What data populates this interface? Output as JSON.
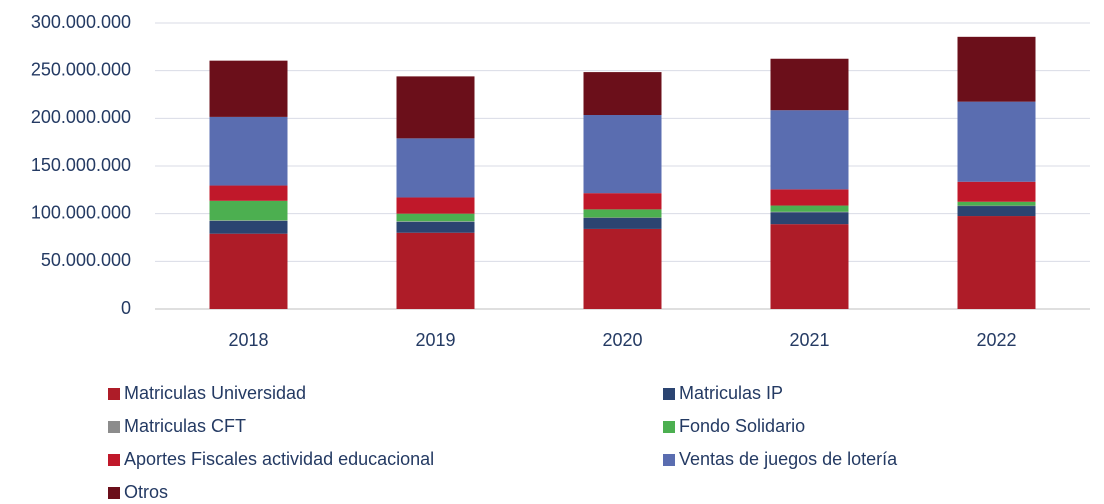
{
  "chart_data": {
    "type": "stacked_bar",
    "categories": [
      "2018",
      "2019",
      "2020",
      "2021",
      "2022"
    ],
    "series": [
      {
        "name": "Matriculas Universidad",
        "color": "#ae1c28",
        "values": [
          79000000,
          80000000,
          84000000,
          89000000,
          97500000
        ]
      },
      {
        "name": "Matriculas IP",
        "color": "#2b4471",
        "values": [
          13500000,
          11500000,
          11500000,
          12500000,
          10500000
        ]
      },
      {
        "name": "Matriculas CFT",
        "color": "#8c8c8c",
        "values": [
          500000,
          500000,
          500000,
          500000,
          500000
        ]
      },
      {
        "name": "Fondo Solidario",
        "color": "#4caf50",
        "values": [
          20500000,
          8000000,
          8500000,
          6500000,
          4000000
        ]
      },
      {
        "name": "Aportes Fiscales actividad educacional",
        "color": "#c0182a",
        "values": [
          16000000,
          17000000,
          17000000,
          17000000,
          21000000
        ]
      },
      {
        "name": "Ventas de juegos de lotería",
        "color": "#5a6db0",
        "values": [
          72000000,
          62000000,
          82000000,
          83000000,
          84000000
        ]
      },
      {
        "name": "Otros",
        "color": "#6b0f1a",
        "values": [
          59000000,
          65000000,
          45000000,
          54000000,
          68000000
        ]
      }
    ],
    "ylim": [
      0,
      300000000
    ],
    "yticks": [
      0,
      {
        "value": 50000000,
        "label": "50.000.000"
      },
      {
        "value": 100000000,
        "label": "100.000.000"
      },
      {
        "value": 150000000,
        "label": "150.000.000"
      },
      {
        "value": 200000000,
        "label": "200.000.000"
      },
      {
        "value": 250000000,
        "label": "250.000.000"
      },
      {
        "value": 300000000,
        "label": "300.000.000"
      }
    ],
    "grid": true,
    "legend": "bottom"
  }
}
